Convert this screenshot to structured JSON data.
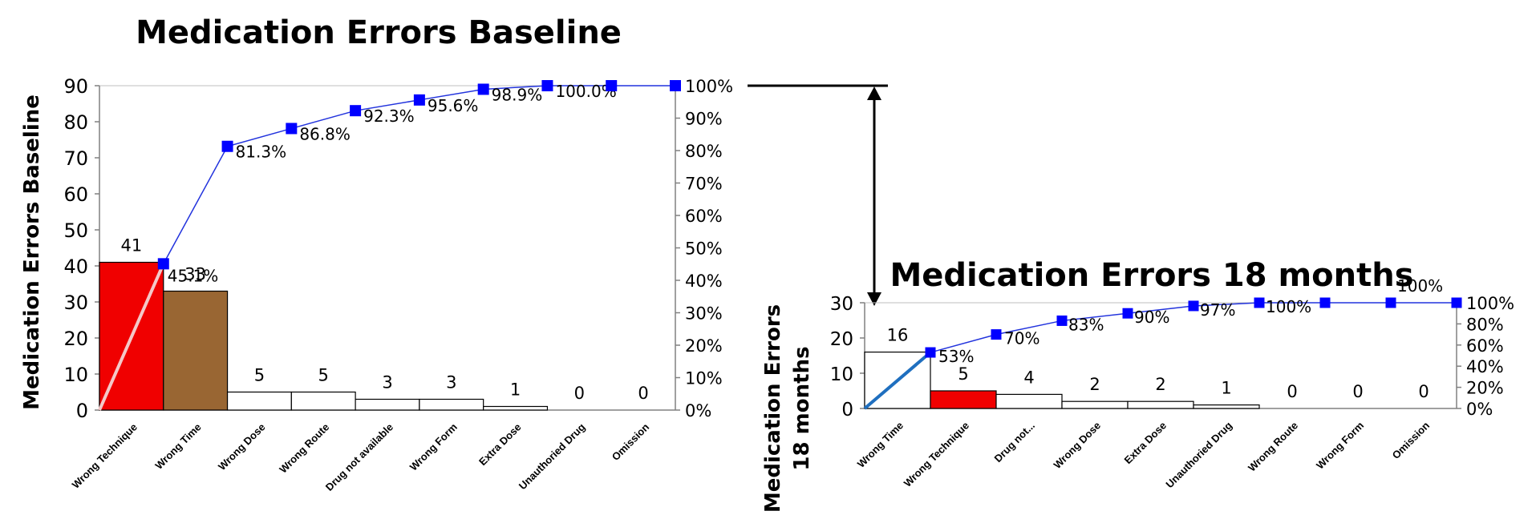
{
  "chart_data": [
    {
      "type": "bar",
      "title": "Medication Errors Baseline",
      "ylabel": "Medication Errors Baseline",
      "ylim": [
        0,
        90
      ],
      "y_ticks": [
        "0",
        "10",
        "20",
        "30",
        "40",
        "50",
        "60",
        "70",
        "80",
        "90"
      ],
      "y2_ticks": [
        "0%",
        "10%",
        "20%",
        "30%",
        "40%",
        "50%",
        "60%",
        "70%",
        "80%",
        "90%",
        "100%"
      ],
      "categories": [
        "Wrong Technique",
        "Wrong Time",
        "Wrong Dose",
        "Wrong Route",
        "Drug not available",
        "Wrong Form",
        "Extra Dose",
        "Unauthoried Drug",
        "Omission"
      ],
      "values": [
        41,
        33,
        5,
        5,
        3,
        3,
        1,
        0,
        0
      ],
      "value_labels": [
        "41",
        "33",
        "5",
        "5",
        "3",
        "3",
        "1",
        "0",
        "0"
      ],
      "cumulative": [
        45.1,
        81.3,
        86.8,
        92.3,
        95.6,
        98.9,
        100.0,
        100.0,
        100.0
      ],
      "cumulative_labels": [
        "45.1%",
        "81.3%",
        "86.8%",
        "92.3%",
        "95.6%",
        "98.9%",
        "100.0%",
        "",
        ""
      ],
      "bar_colors": [
        "#f00000",
        "#996633",
        "#ffffff",
        "#ffffff",
        "#ffffff",
        "#ffffff",
        "#ffffff",
        "#ffffff",
        "#ffffff"
      ],
      "line_color": "#2233dd",
      "marker_color": "#0000ff",
      "trend_color": "#f4c8c8"
    },
    {
      "type": "bar",
      "title": "Medication Errors 18 months",
      "ylabel": "Medication Errors 18 months",
      "ylim": [
        0,
        30
      ],
      "y_ticks": [
        "0",
        "10",
        "20",
        "30"
      ],
      "y2_ticks": [
        "0%",
        "20%",
        "40%",
        "60%",
        "80%",
        "100%"
      ],
      "categories": [
        "Wrong Time",
        "Wrong Technique",
        "Drug not...",
        "Wrong Dose",
        "Extra Dose",
        "Unauthoried Drug",
        "Wrong Route",
        "Wrong Form",
        "Omission"
      ],
      "values": [
        16,
        5,
        4,
        2,
        2,
        1,
        0,
        0,
        0
      ],
      "value_labels": [
        "16",
        "5",
        "4",
        "2",
        "2",
        "1",
        "0",
        "0",
        "0"
      ],
      "cumulative": [
        53,
        70,
        83,
        90,
        97,
        100,
        100,
        100,
        100
      ],
      "cumulative_labels": [
        "53%",
        "70%",
        "83%",
        "90%",
        "97%",
        "100%",
        "",
        "100%",
        ""
      ],
      "bar_colors": [
        "#ffffff",
        "#f00000",
        "#ffffff",
        "#ffffff",
        "#ffffff",
        "#ffffff",
        "#ffffff",
        "#ffffff",
        "#ffffff"
      ],
      "line_color": "#2233dd",
      "marker_color": "#0000ff",
      "trend_color": "#1f6fbf"
    }
  ]
}
